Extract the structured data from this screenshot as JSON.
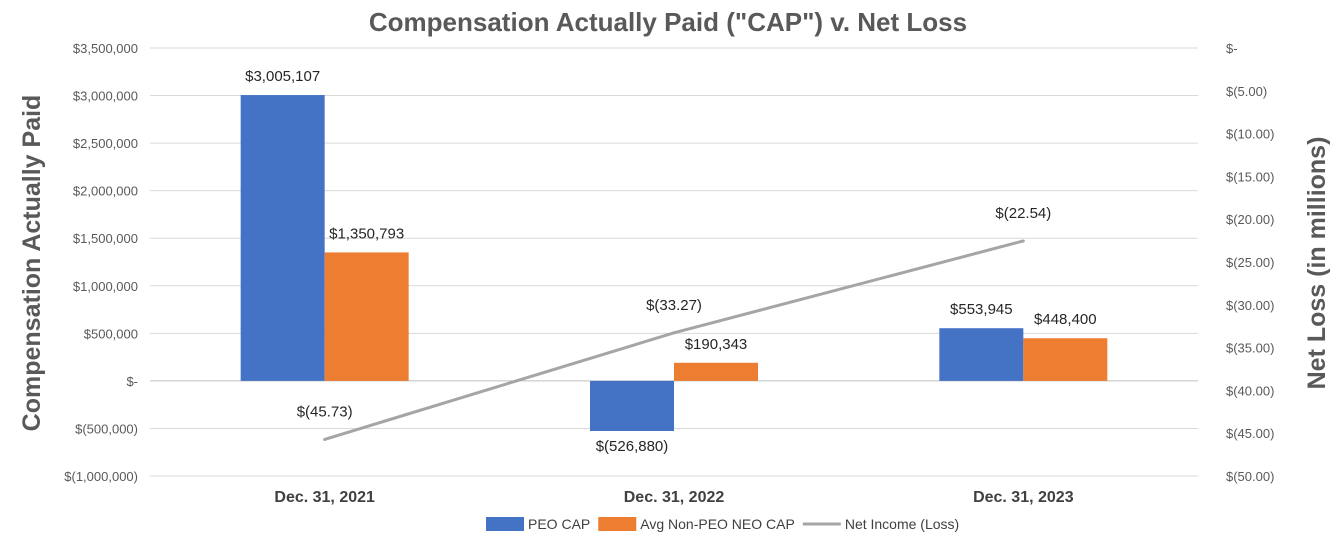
{
  "chart_data": {
    "type": "bar",
    "title": "Compensation Actually Paid (\"CAP\") v. Net Loss",
    "ylabel": "Compensation Actually Paid",
    "y2label": "Net Loss (in millions)",
    "categories": [
      "Dec. 31, 2021",
      "Dec. 31, 2022",
      "Dec. 31, 2023"
    ],
    "ylim": [
      -1000000,
      3500000
    ],
    "y_ticks": [
      {
        "value": 3500000,
        "label": "$3,500,000"
      },
      {
        "value": 3000000,
        "label": "$3,000,000"
      },
      {
        "value": 2500000,
        "label": "$2,500,000"
      },
      {
        "value": 2000000,
        "label": "$2,000,000"
      },
      {
        "value": 1500000,
        "label": "$1,500,000"
      },
      {
        "value": 1000000,
        "label": "$1,000,000"
      },
      {
        "value": 500000,
        "label": "$500,000"
      },
      {
        "value": 0,
        "label": "$-"
      },
      {
        "value": -500000,
        "label": "$(500,000)"
      },
      {
        "value": -1000000,
        "label": "$(1,000,000)"
      }
    ],
    "y2lim": [
      -50,
      0
    ],
    "y2_ticks": [
      {
        "value": 0,
        "label": "$-"
      },
      {
        "value": -5,
        "label": "$(5.00)"
      },
      {
        "value": -10,
        "label": "$(10.00)"
      },
      {
        "value": -15,
        "label": "$(15.00)"
      },
      {
        "value": -20,
        "label": "$(20.00)"
      },
      {
        "value": -25,
        "label": "$(25.00)"
      },
      {
        "value": -30,
        "label": "$(30.00)"
      },
      {
        "value": -35,
        "label": "$(35.00)"
      },
      {
        "value": -40,
        "label": "$(40.00)"
      },
      {
        "value": -45,
        "label": "$(45.00)"
      },
      {
        "value": -50,
        "label": "$(50.00)"
      }
    ],
    "series": [
      {
        "name": "PEO CAP",
        "kind": "bar",
        "axis": "left",
        "color": "#4472c4",
        "values": [
          3005107,
          -526880,
          553945
        ],
        "labels": [
          "$3,005,107",
          "$(526,880)",
          "$553,945"
        ]
      },
      {
        "name": "Avg Non-PEO NEO CAP",
        "kind": "bar",
        "axis": "left",
        "color": "#ed7d31",
        "values": [
          1350793,
          190343,
          448400
        ],
        "labels": [
          "$1,350,793",
          "$190,343",
          "$448,400"
        ]
      },
      {
        "name": "Net Income (Loss)",
        "kind": "line",
        "axis": "right",
        "color": "#a5a5a5",
        "values": [
          -45.73,
          -33.27,
          -22.54
        ],
        "labels": [
          "$(45.73)",
          "$(33.27)",
          "$(22.54)"
        ]
      }
    ],
    "grid": true,
    "legend": "bottom"
  }
}
